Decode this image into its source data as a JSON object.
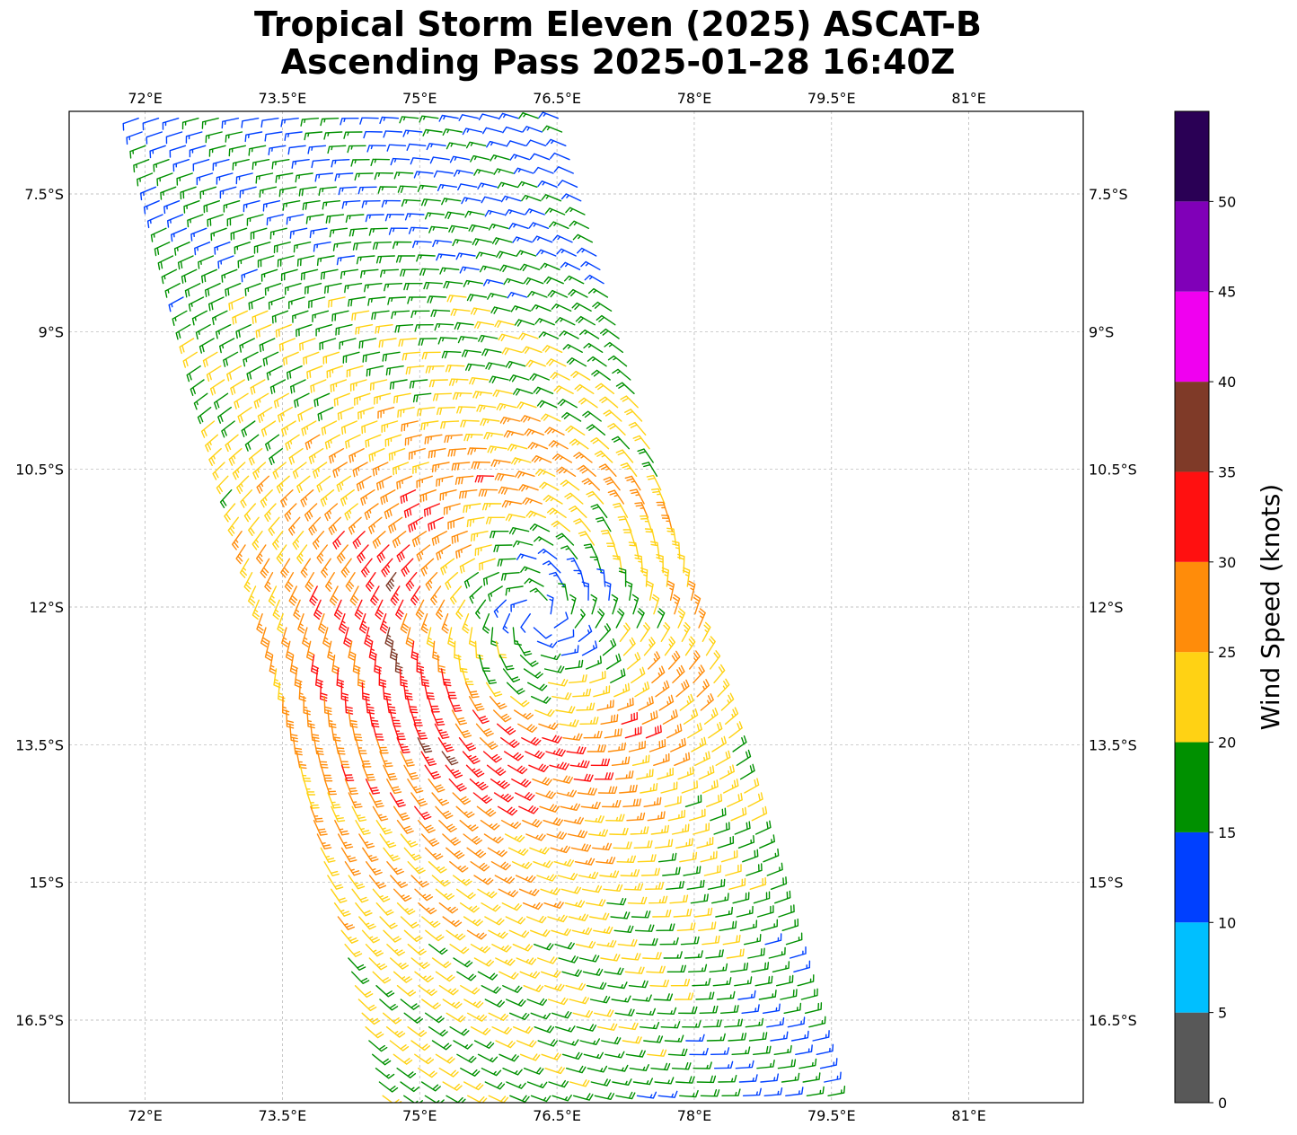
{
  "chart_data": {
    "type": "wind_barbs",
    "title_lines": [
      "Tropical Storm Eleven (2025) ASCAT-B",
      "Ascending Pass 2025-01-28 16:40Z"
    ],
    "x_axis": {
      "ticks": [
        72,
        73.5,
        75,
        76.5,
        78,
        79.5,
        81
      ],
      "tick_labels": [
        "72°E",
        "73.5°E",
        "75°E",
        "76.5°E",
        "78°E",
        "79.5°E",
        "81°E"
      ],
      "lim": [
        71.17,
        82.25
      ],
      "labels_top_and_bottom": true
    },
    "y_axis": {
      "ticks": [
        -7.5,
        -9,
        -10.5,
        -12,
        -13.5,
        -15,
        -16.5
      ],
      "tick_labels": [
        "7.5°S",
        "9°S",
        "10.5°S",
        "12°S",
        "13.5°S",
        "15°S",
        "16.5°S"
      ],
      "lim": [
        -17.4,
        -6.6
      ],
      "labels_left_and_right": true
    },
    "grid": true,
    "storm_center": {
      "lon": 76.3,
      "lat": -12.1
    },
    "swath": {
      "corners": [
        {
          "lon": 71.8,
          "lat": -6.6
        },
        {
          "lon": 76.6,
          "lat": -6.6
        },
        {
          "lon": 79.6,
          "lat": -17.4
        },
        {
          "lon": 74.5,
          "lat": -17.4
        }
      ]
    },
    "wind_field_model": {
      "rmw_deg": 1.6,
      "vmax_kt": 30,
      "eye_kt": 12,
      "asymmetry_kt": 5,
      "asymmetry_direction_deg": 210
    },
    "colorbar": {
      "label": "Wind Speed (knots)",
      "bounds": [
        0,
        5,
        10,
        15,
        20,
        25,
        30,
        35,
        40,
        45,
        50,
        55
      ],
      "tick_labels": [
        "0",
        "5",
        "10",
        "15",
        "20",
        "25",
        "30",
        "35",
        "40",
        "45",
        "50"
      ],
      "colors": [
        "#585858",
        "#00bfff",
        "#0040ff",
        "#009000",
        "#ffd214",
        "#ff8c0a",
        "#ff1010",
        "#7f3a28",
        "#f000f0",
        "#8000b8",
        "#2a0055"
      ]
    }
  }
}
